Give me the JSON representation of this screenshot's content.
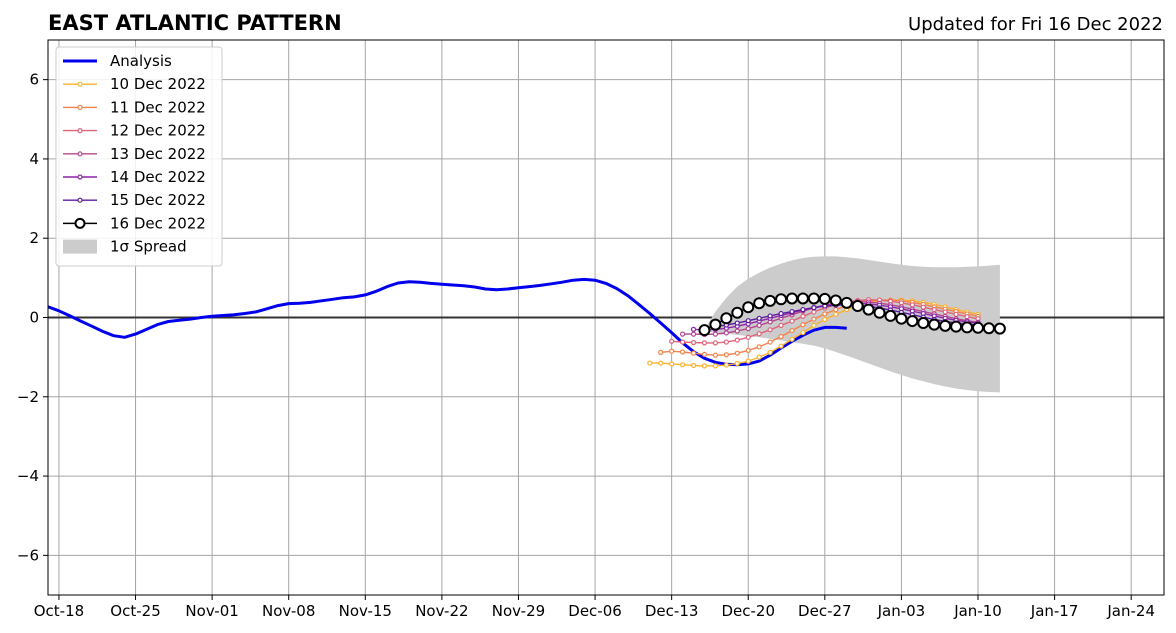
{
  "chart_data": {
    "type": "line",
    "title": "EAST ATLANTIC PATTERN",
    "subtitle": "Updated for Fri 16 Dec 2022",
    "xlabel": "",
    "ylabel": "",
    "x_range": [
      "2022-10-17",
      "2023-01-27"
    ],
    "ylim": [
      -7,
      7
    ],
    "yticks": [
      6,
      4,
      2,
      0,
      -2,
      -4,
      -6
    ],
    "ytick_labels": [
      "6",
      "4",
      "2",
      "0",
      "−2",
      "−4",
      "−6"
    ],
    "xticks": [
      "2022-10-18",
      "2022-10-25",
      "2022-11-01",
      "2022-11-08",
      "2022-11-15",
      "2022-11-22",
      "2022-11-29",
      "2022-12-06",
      "2022-12-13",
      "2022-12-20",
      "2022-12-27",
      "2023-01-03",
      "2023-01-10",
      "2023-01-17",
      "2023-01-24"
    ],
    "xtick_labels": [
      "Oct-18",
      "Oct-25",
      "Nov-01",
      "Nov-08",
      "Nov-15",
      "Nov-22",
      "Nov-29",
      "Dec-06",
      "Dec-13",
      "Dec-20",
      "Dec-27",
      "Jan-03",
      "Jan-10",
      "Jan-17",
      "Jan-24"
    ],
    "grid": true,
    "legend_position": "top-left",
    "legend": [
      "Analysis",
      "10 Dec 2022",
      "11 Dec 2022",
      "12 Dec 2022",
      "13 Dec 2022",
      "14 Dec 2022",
      "15 Dec 2022",
      "16 Dec 2022",
      "1σ Spread"
    ],
    "analysis": {
      "name": "Analysis",
      "color": "#0000ee",
      "start": "2022-10-17",
      "values": [
        0.27,
        0.17,
        0.04,
        -0.09,
        -0.22,
        -0.35,
        -0.46,
        -0.5,
        -0.42,
        -0.3,
        -0.18,
        -0.1,
        -0.07,
        -0.04,
        0.0,
        0.03,
        0.05,
        0.07,
        0.1,
        0.14,
        0.22,
        0.3,
        0.35,
        0.36,
        0.38,
        0.42,
        0.46,
        0.5,
        0.52,
        0.57,
        0.66,
        0.78,
        0.87,
        0.9,
        0.89,
        0.86,
        0.84,
        0.82,
        0.8,
        0.77,
        0.72,
        0.7,
        0.72,
        0.75,
        0.78,
        0.81,
        0.85,
        0.89,
        0.94,
        0.96,
        0.94,
        0.86,
        0.73,
        0.55,
        0.33,
        0.1,
        -0.14,
        -0.38,
        -0.64,
        -0.86,
        -1.03,
        -1.13,
        -1.18,
        -1.19,
        -1.17,
        -1.1,
        -0.95,
        -0.77,
        -0.6,
        -0.45,
        -0.32,
        -0.25,
        -0.25,
        -0.27
      ]
    },
    "forecasts": [
      {
        "name": "10 Dec 2022",
        "color": "#fbb32f",
        "start": "2022-12-11",
        "values": [
          -1.15,
          -1.15,
          -1.17,
          -1.19,
          -1.21,
          -1.22,
          -1.22,
          -1.2,
          -1.16,
          -1.1,
          -1.0,
          -0.88,
          -0.72,
          -0.55,
          -0.38,
          -0.2,
          -0.05,
          0.08,
          0.2,
          0.3,
          0.37,
          0.42,
          0.44,
          0.44,
          0.42,
          0.38,
          0.33,
          0.27,
          0.2,
          0.14,
          0.08
        ]
      },
      {
        "name": "11 Dec 2022",
        "color": "#f3834a",
        "start": "2022-12-12",
        "values": [
          -0.88,
          -0.85,
          -0.87,
          -0.9,
          -0.93,
          -0.95,
          -0.94,
          -0.9,
          -0.83,
          -0.74,
          -0.62,
          -0.48,
          -0.33,
          -0.18,
          -0.04,
          0.09,
          0.2,
          0.3,
          0.37,
          0.42,
          0.44,
          0.44,
          0.42,
          0.38,
          0.33,
          0.27,
          0.21,
          0.15,
          0.09,
          0.03
        ]
      },
      {
        "name": "12 Dec 2022",
        "color": "#e0637a",
        "start": "2022-12-13",
        "values": [
          -0.6,
          -0.62,
          -0.63,
          -0.64,
          -0.64,
          -0.62,
          -0.57,
          -0.5,
          -0.41,
          -0.31,
          -0.2,
          -0.09,
          0.03,
          0.14,
          0.24,
          0.32,
          0.39,
          0.43,
          0.45,
          0.44,
          0.41,
          0.37,
          0.32,
          0.26,
          0.2,
          0.14,
          0.08,
          0.02,
          -0.03
        ]
      },
      {
        "name": "13 Dec 2022",
        "color": "#b5478e",
        "start": "2022-12-14",
        "values": [
          -0.42,
          -0.42,
          -0.43,
          -0.42,
          -0.39,
          -0.34,
          -0.28,
          -0.2,
          -0.11,
          -0.02,
          0.07,
          0.16,
          0.24,
          0.31,
          0.36,
          0.39,
          0.4,
          0.39,
          0.36,
          0.32,
          0.27,
          0.21,
          0.15,
          0.09,
          0.03,
          -0.03,
          -0.08,
          -0.12
        ]
      },
      {
        "name": "14 Dec 2022",
        "color": "#8e24aa",
        "start": "2022-12-15",
        "values": [
          -0.3,
          -0.31,
          -0.3,
          -0.27,
          -0.22,
          -0.16,
          -0.09,
          -0.02,
          0.05,
          0.12,
          0.19,
          0.25,
          0.3,
          0.34,
          0.36,
          0.36,
          0.34,
          0.31,
          0.27,
          0.22,
          0.16,
          0.1,
          0.04,
          -0.02,
          -0.07,
          -0.11,
          -0.14
        ]
      },
      {
        "name": "15 Dec 2022",
        "color": "#5b1a9e",
        "start": "2022-12-16",
        "values": [
          -0.25,
          -0.23,
          -0.19,
          -0.14,
          -0.08,
          -0.02,
          0.04,
          0.1,
          0.15,
          0.2,
          0.25,
          0.29,
          0.31,
          0.32,
          0.31,
          0.28,
          0.24,
          0.19,
          0.13,
          0.07,
          0.01,
          -0.05,
          -0.1,
          -0.14,
          -0.17,
          -0.19
        ]
      },
      {
        "name": "16 Dec 2022",
        "color": "#000000",
        "start": "2022-12-16",
        "values": [
          -0.32,
          -0.18,
          -0.02,
          0.12,
          0.26,
          0.36,
          0.42,
          0.46,
          0.48,
          0.48,
          0.48,
          0.47,
          0.43,
          0.37,
          0.29,
          0.2,
          0.12,
          0.04,
          -0.03,
          -0.09,
          -0.14,
          -0.18,
          -0.21,
          -0.23,
          -0.25,
          -0.26,
          -0.27,
          -0.28
        ]
      }
    ],
    "spread": {
      "name": "1σ Spread",
      "color": "#cccccc",
      "start": "2022-12-16",
      "upper": [
        -0.3,
        0.15,
        0.5,
        0.78,
        0.98,
        1.13,
        1.26,
        1.36,
        1.44,
        1.5,
        1.53,
        1.54,
        1.54,
        1.52,
        1.49,
        1.45,
        1.41,
        1.37,
        1.33,
        1.3,
        1.28,
        1.27,
        1.27,
        1.27,
        1.28,
        1.29,
        1.31,
        1.33
      ],
      "lower": [
        -0.34,
        -0.38,
        -0.41,
        -0.44,
        -0.47,
        -0.5,
        -0.54,
        -0.58,
        -0.62,
        -0.66,
        -0.71,
        -0.78,
        -0.87,
        -0.96,
        -1.06,
        -1.16,
        -1.26,
        -1.36,
        -1.45,
        -1.54,
        -1.61,
        -1.68,
        -1.74,
        -1.79,
        -1.83,
        -1.86,
        -1.88,
        -1.89
      ]
    }
  }
}
